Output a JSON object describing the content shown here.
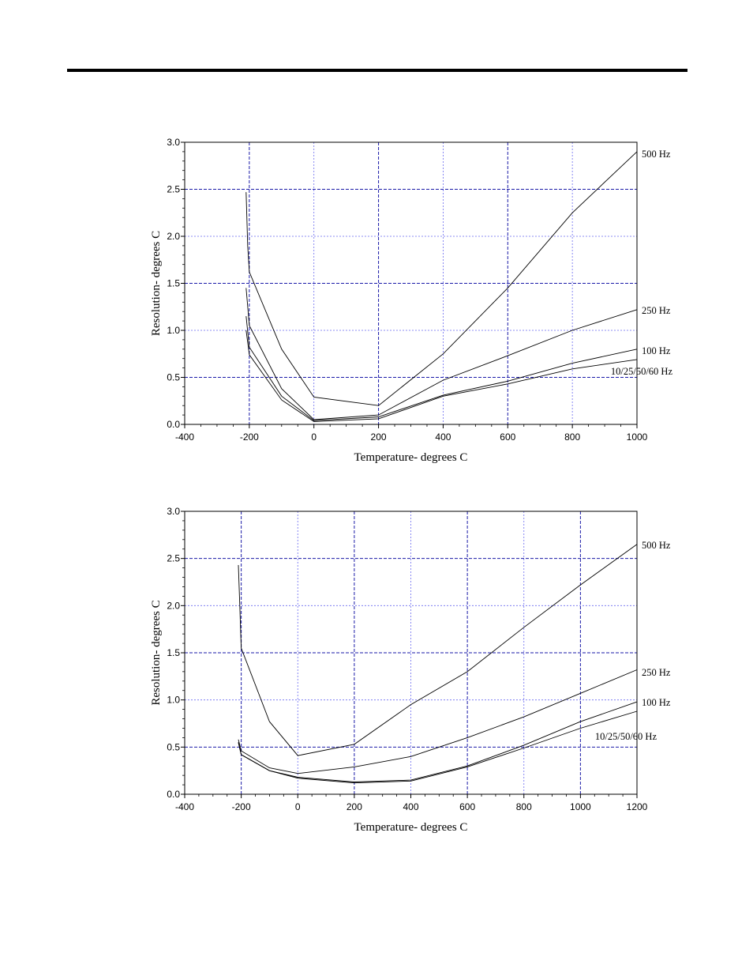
{
  "chart_data": [
    {
      "type": "line",
      "xlabel": "Temperature- degrees C",
      "ylabel": "Resolution- degrees C",
      "xlim": [
        -400,
        1000
      ],
      "ylim": [
        0,
        3.0
      ],
      "x_ticks": [
        "-400",
        "-200",
        "0",
        "200",
        "400",
        "600",
        "800",
        "1000"
      ],
      "y_ticks": [
        "0.0",
        "0.5",
        "1.0",
        "1.5",
        "2.0",
        "2.5",
        "3.0"
      ],
      "grid": true,
      "series": [
        {
          "name": "500 Hz",
          "points": [
            [
              -210,
              2.47
            ],
            [
              -205,
              1.9
            ],
            [
              -200,
              1.62
            ],
            [
              -100,
              0.8
            ],
            [
              0,
              0.29
            ],
            [
              200,
              0.2
            ],
            [
              400,
              0.75
            ],
            [
              600,
              1.45
            ],
            [
              800,
              2.25
            ],
            [
              1000,
              2.9
            ]
          ]
        },
        {
          "name": "250 Hz",
          "points": [
            [
              -210,
              1.45
            ],
            [
              -200,
              1.05
            ],
            [
              -100,
              0.38
            ],
            [
              0,
              0.05
            ],
            [
              200,
              0.1
            ],
            [
              400,
              0.47
            ],
            [
              600,
              0.73
            ],
            [
              800,
              1.0
            ],
            [
              1000,
              1.22
            ]
          ]
        },
        {
          "name": "100 Hz",
          "points": [
            [
              -210,
              1.15
            ],
            [
              -200,
              0.82
            ],
            [
              -100,
              0.3
            ],
            [
              0,
              0.04
            ],
            [
              200,
              0.08
            ],
            [
              400,
              0.31
            ],
            [
              600,
              0.46
            ],
            [
              800,
              0.65
            ],
            [
              1000,
              0.8
            ]
          ]
        },
        {
          "name": "10/25/50/60 Hz",
          "points": [
            [
              -210,
              1.0
            ],
            [
              -200,
              0.74
            ],
            [
              -100,
              0.26
            ],
            [
              0,
              0.03
            ],
            [
              200,
              0.06
            ],
            [
              400,
              0.3
            ],
            [
              600,
              0.43
            ],
            [
              800,
              0.59
            ],
            [
              1000,
              0.69
            ]
          ]
        }
      ]
    },
    {
      "type": "line",
      "xlabel": "Temperature- degrees C",
      "ylabel": "Resolution- degrees C",
      "xlim": [
        -400,
        1200
      ],
      "ylim": [
        0,
        3.0
      ],
      "x_ticks": [
        "-400",
        "-200",
        "0",
        "200",
        "400",
        "600",
        "800",
        "1000",
        "1200"
      ],
      "y_ticks": [
        "0.0",
        "0.5",
        "1.0",
        "1.5",
        "2.0",
        "2.5",
        "3.0"
      ],
      "grid": true,
      "series": [
        {
          "name": "500 Hz",
          "points": [
            [
              -210,
              2.43
            ],
            [
              -205,
              2.0
            ],
            [
              -200,
              1.55
            ],
            [
              -100,
              0.77
            ],
            [
              0,
              0.41
            ],
            [
              200,
              0.53
            ],
            [
              400,
              0.95
            ],
            [
              600,
              1.3
            ],
            [
              800,
              1.77
            ],
            [
              1000,
              2.22
            ],
            [
              1200,
              2.65
            ]
          ]
        },
        {
          "name": "250 Hz",
          "points": [
            [
              -210,
              0.58
            ],
            [
              -200,
              0.46
            ],
            [
              -100,
              0.28
            ],
            [
              0,
              0.22
            ],
            [
              200,
              0.29
            ],
            [
              400,
              0.4
            ],
            [
              600,
              0.6
            ],
            [
              800,
              0.82
            ],
            [
              1000,
              1.07
            ],
            [
              1200,
              1.32
            ]
          ]
        },
        {
          "name": "100 Hz",
          "points": [
            [
              -210,
              0.55
            ],
            [
              -200,
              0.42
            ],
            [
              -100,
              0.25
            ],
            [
              0,
              0.18
            ],
            [
              200,
              0.13
            ],
            [
              400,
              0.15
            ],
            [
              600,
              0.3
            ],
            [
              800,
              0.52
            ],
            [
              1000,
              0.77
            ],
            [
              1200,
              0.98
            ]
          ]
        },
        {
          "name": "10/25/50/60 Hz",
          "points": [
            [
              -210,
              0.55
            ],
            [
              -200,
              0.42
            ],
            [
              -100,
              0.25
            ],
            [
              0,
              0.17
            ],
            [
              200,
              0.12
            ],
            [
              400,
              0.14
            ],
            [
              600,
              0.29
            ],
            [
              800,
              0.49
            ],
            [
              1000,
              0.7
            ],
            [
              1200,
              0.88
            ]
          ]
        }
      ]
    }
  ]
}
